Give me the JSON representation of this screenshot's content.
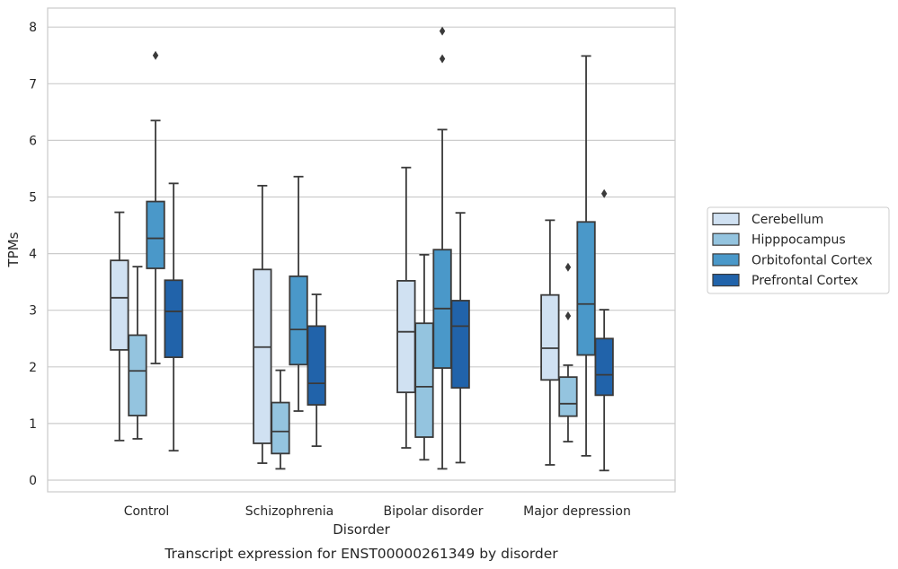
{
  "chart_data": {
    "type": "boxplot",
    "caption": "Transcript expression for ENST00000261349 by disorder",
    "xlabel": "Disorder",
    "ylabel": "TPMs",
    "ylim": [
      -0.2,
      8.35
    ],
    "yticks": [
      0,
      1,
      2,
      3,
      4,
      5,
      6,
      7,
      8
    ],
    "grid": true,
    "legend_position": "right",
    "categories": [
      "Control",
      "Schizophrenia",
      "Bipolar disorder",
      "Major depression"
    ],
    "series": [
      {
        "name": "Cerebellum",
        "color": "#d0e1f2",
        "boxes": [
          {
            "whisker_low": 0.7,
            "q1": 2.3,
            "median": 3.22,
            "q3": 3.88,
            "whisker_high": 4.73,
            "outliers": []
          },
          {
            "whisker_low": 0.3,
            "q1": 0.65,
            "median": 2.35,
            "q3": 3.72,
            "whisker_high": 5.2,
            "outliers": []
          },
          {
            "whisker_low": 0.57,
            "q1": 1.55,
            "median": 2.62,
            "q3": 3.52,
            "whisker_high": 5.52,
            "outliers": []
          },
          {
            "whisker_low": 0.27,
            "q1": 1.77,
            "median": 2.33,
            "q3": 3.27,
            "whisker_high": 4.59,
            "outliers": []
          }
        ]
      },
      {
        "name": "Hipppocampus",
        "color": "#94c4df",
        "boxes": [
          {
            "whisker_low": 0.73,
            "q1": 1.14,
            "median": 1.93,
            "q3": 2.56,
            "whisker_high": 3.77,
            "outliers": []
          },
          {
            "whisker_low": 0.2,
            "q1": 0.47,
            "median": 0.86,
            "q3": 1.37,
            "whisker_high": 1.94,
            "outliers": []
          },
          {
            "whisker_low": 0.36,
            "q1": 0.76,
            "median": 1.65,
            "q3": 2.77,
            "whisker_high": 3.98,
            "outliers": []
          },
          {
            "whisker_low": 0.68,
            "q1": 1.13,
            "median": 1.35,
            "q3": 1.82,
            "whisker_high": 2.03,
            "outliers": [
              2.9,
              3.76
            ]
          }
        ]
      },
      {
        "name": "Orbitofontal Cortex",
        "color": "#4a98c9",
        "boxes": [
          {
            "whisker_low": 2.06,
            "q1": 3.74,
            "median": 4.27,
            "q3": 4.92,
            "whisker_high": 6.35,
            "outliers": [
              7.5
            ]
          },
          {
            "whisker_low": 1.22,
            "q1": 2.04,
            "median": 2.66,
            "q3": 3.6,
            "whisker_high": 5.36,
            "outliers": []
          },
          {
            "whisker_low": 0.2,
            "q1": 1.98,
            "median": 3.03,
            "q3": 4.07,
            "whisker_high": 6.19,
            "outliers": [
              7.44,
              7.93
            ]
          },
          {
            "whisker_low": 0.43,
            "q1": 2.21,
            "median": 3.11,
            "q3": 4.56,
            "whisker_high": 7.49,
            "outliers": []
          }
        ]
      },
      {
        "name": "Prefrontal Cortex",
        "color": "#2163aa",
        "boxes": [
          {
            "whisker_low": 0.52,
            "q1": 2.17,
            "median": 2.98,
            "q3": 3.53,
            "whisker_high": 5.24,
            "outliers": []
          },
          {
            "whisker_low": 0.6,
            "q1": 1.33,
            "median": 1.71,
            "q3": 2.72,
            "whisker_high": 3.28,
            "outliers": []
          },
          {
            "whisker_low": 0.31,
            "q1": 1.63,
            "median": 2.72,
            "q3": 3.17,
            "whisker_high": 4.72,
            "outliers": []
          },
          {
            "whisker_low": 0.17,
            "q1": 1.5,
            "median": 1.86,
            "q3": 2.5,
            "whisker_high": 3.01,
            "outliers": [
              5.06
            ]
          }
        ]
      }
    ]
  }
}
